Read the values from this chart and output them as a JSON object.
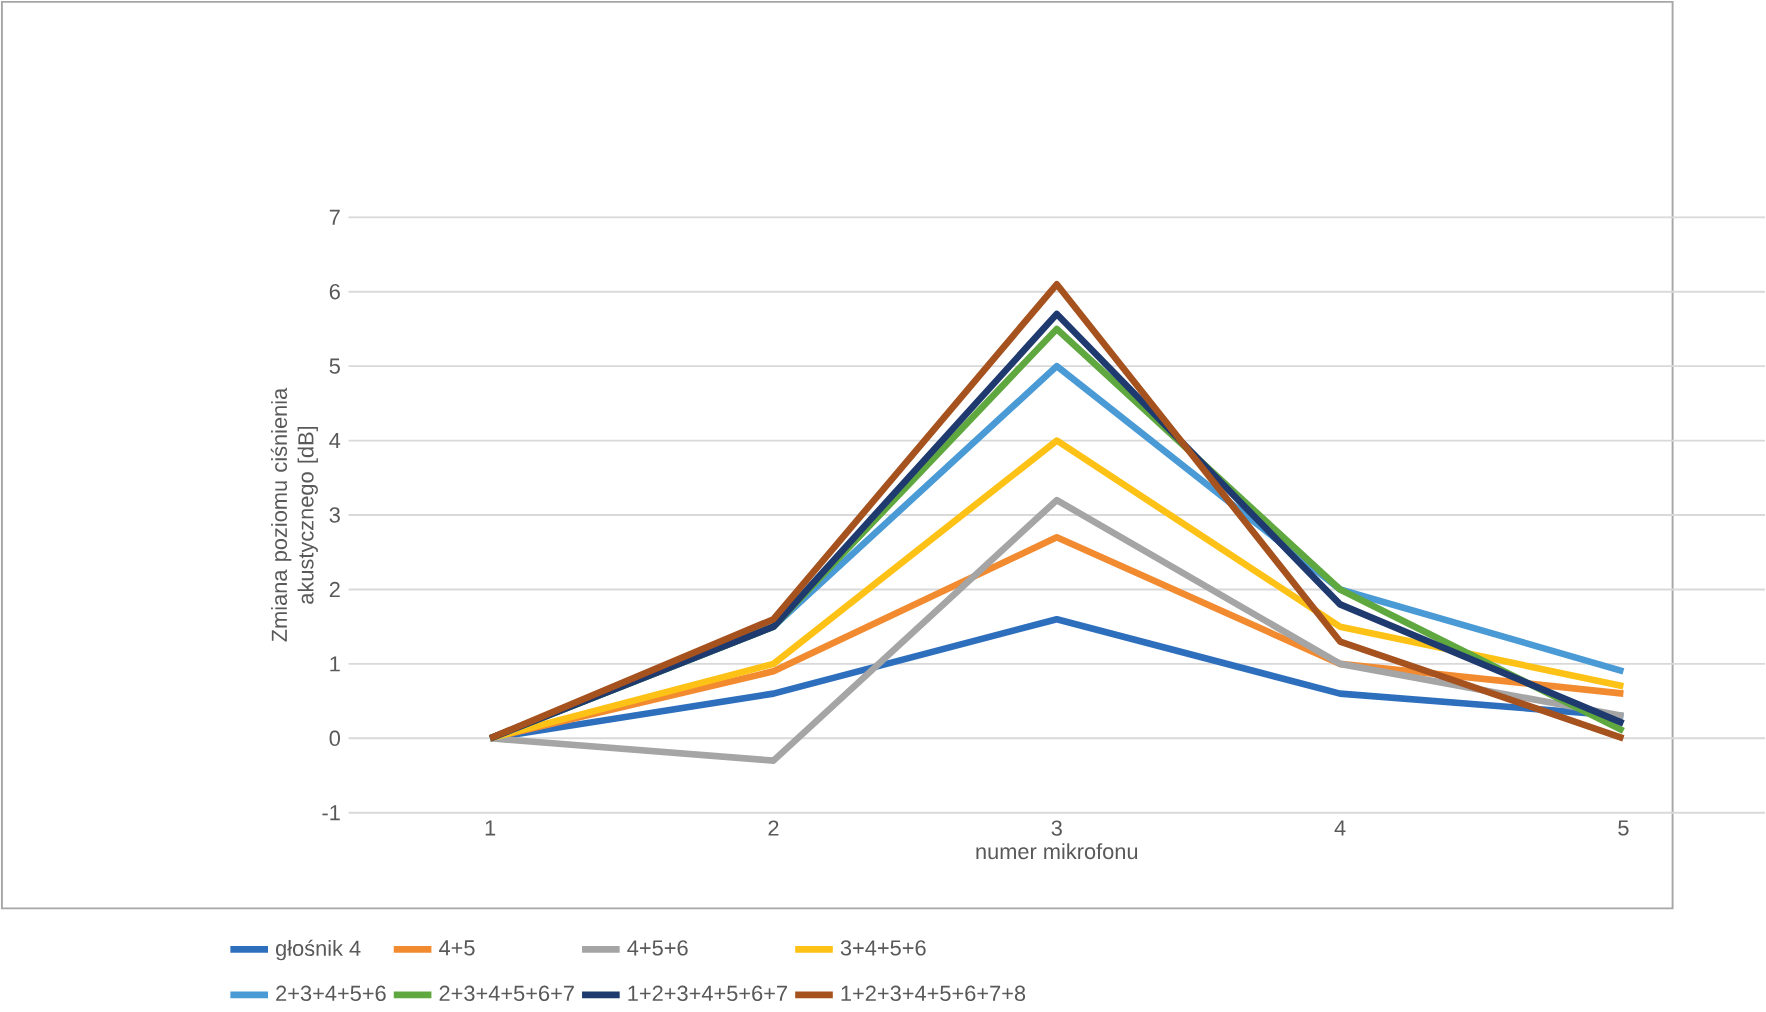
{
  "chart_data": {
    "type": "line",
    "xlabel": "numer mikrofonu",
    "ylabel": "Zmiana poziomu ciśnienia akustycznego [dB]",
    "categories": [
      "1",
      "2",
      "3",
      "4",
      "5"
    ],
    "ylim": [
      -1,
      7
    ],
    "yticks": [
      -1,
      0,
      1,
      2,
      3,
      4,
      5,
      6,
      7
    ],
    "grid": "y",
    "legend": "bottom",
    "marker": "none",
    "line_style": "solid",
    "series": [
      {
        "name": "głośnik 4",
        "color": "#2e6fbd",
        "values": [
          0,
          0.6,
          1.6,
          0.6,
          0.3
        ]
      },
      {
        "name": "4+5",
        "color": "#f28a30",
        "values": [
          0,
          0.9,
          2.7,
          1.0,
          0.6
        ]
      },
      {
        "name": "4+5+6",
        "color": "#a5a5a5",
        "values": [
          0,
          -0.3,
          3.2,
          1.0,
          0.3
        ]
      },
      {
        "name": "3+4+5+6",
        "color": "#fdc215",
        "values": [
          0,
          1.0,
          4.0,
          1.5,
          0.7
        ]
      },
      {
        "name": "2+3+4+5+6",
        "color": "#4a9ad6",
        "values": [
          0,
          1.5,
          5.0,
          2.0,
          0.9
        ]
      },
      {
        "name": "2+3+4+5+6+7",
        "color": "#5fa83f",
        "values": [
          0,
          1.5,
          5.5,
          2.0,
          0.1
        ]
      },
      {
        "name": "1+2+3+4+5+6+7",
        "color": "#1f3a6e",
        "values": [
          0,
          1.5,
          5.7,
          1.8,
          0.2
        ]
      },
      {
        "name": "1+2+3+4+5+6+7+8",
        "color": "#a6521f",
        "values": [
          0,
          1.6,
          6.1,
          1.3,
          0.0
        ]
      }
    ]
  }
}
